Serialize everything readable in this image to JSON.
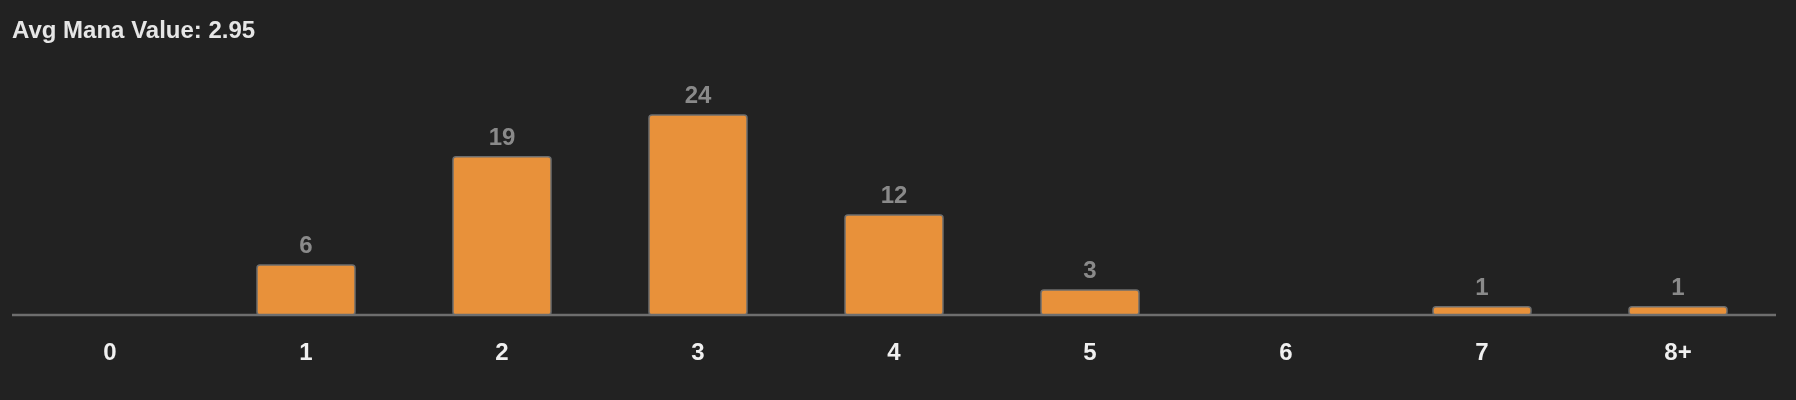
{
  "chart_data": {
    "type": "bar",
    "title": "Avg Mana Value: 2.95",
    "categories": [
      "0",
      "1",
      "2",
      "3",
      "4",
      "5",
      "6",
      "7",
      "8+"
    ],
    "values": [
      0,
      6,
      19,
      24,
      12,
      3,
      0,
      1,
      1
    ],
    "value_labels": [
      null,
      "6",
      "19",
      "24",
      "12",
      "3",
      null,
      "1",
      "1"
    ],
    "color": "#e8913a",
    "grid": false
  }
}
